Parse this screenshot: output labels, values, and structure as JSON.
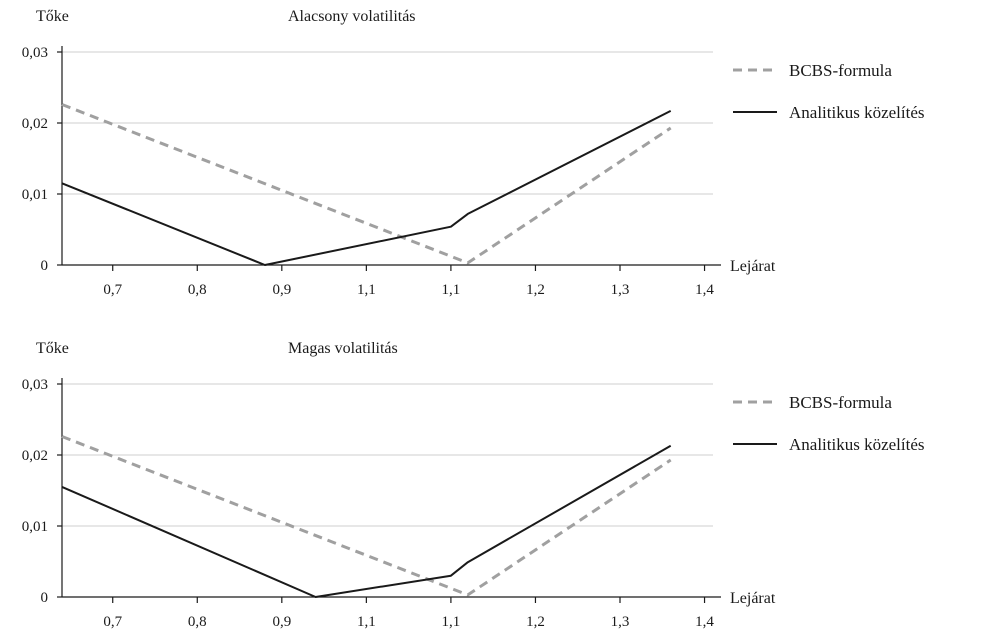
{
  "chart_data": [
    {
      "type": "line",
      "title": "Alacsony volatilitás",
      "ylabel": "Tőke",
      "xlabel": "Lejárat",
      "x_tick_labels": [
        "0,7",
        "0,8",
        "0,9",
        "1,1",
        "1,1",
        "1,2",
        "1,3",
        "1,4"
      ],
      "y_tick_labels": [
        "0",
        "0,01",
        "0,02",
        "0,03"
      ],
      "y_ticks": [
        0,
        0.01,
        0.02,
        0.03
      ],
      "ylim": [
        0,
        0.03
      ],
      "grid": true,
      "legend": "right",
      "series": [
        {
          "name": "BCBS-formula",
          "style": "dashed",
          "color": "#a0a0a0",
          "points": [
            [
              0.64,
              0.0226
            ],
            [
              1.12,
              0.0003
            ],
            [
              1.36,
              0.0193
            ]
          ]
        },
        {
          "name": "Analitikus közelítés",
          "style": "solid",
          "color": "#1a1a1a",
          "points": [
            [
              0.64,
              0.0115
            ],
            [
              0.88,
              0.0
            ],
            [
              1.1,
              0.0054
            ],
            [
              1.12,
              0.0072
            ],
            [
              1.36,
              0.0217
            ]
          ]
        }
      ]
    },
    {
      "type": "line",
      "title": "Magas volatilitás",
      "ylabel": "Tőke",
      "xlabel": "Lejárat",
      "x_tick_labels": [
        "0,7",
        "0,8",
        "0,9",
        "1,1",
        "1,1",
        "1,2",
        "1,3",
        "1,4"
      ],
      "y_tick_labels": [
        "0",
        "0,01",
        "0,02",
        "0,03"
      ],
      "y_ticks": [
        0,
        0.01,
        0.02,
        0.03
      ],
      "ylim": [
        0,
        0.03
      ],
      "grid": true,
      "legend": "right",
      "series": [
        {
          "name": "BCBS-formula",
          "style": "dashed",
          "color": "#a0a0a0",
          "points": [
            [
              0.64,
              0.0226
            ],
            [
              1.12,
              0.0003
            ],
            [
              1.36,
              0.0193
            ]
          ]
        },
        {
          "name": "Analitikus közelítés",
          "style": "solid",
          "color": "#1a1a1a",
          "points": [
            [
              0.64,
              0.0155
            ],
            [
              0.94,
              0.0
            ],
            [
              1.1,
              0.003
            ],
            [
              1.12,
              0.0049
            ],
            [
              1.36,
              0.0213
            ]
          ]
        }
      ]
    }
  ]
}
